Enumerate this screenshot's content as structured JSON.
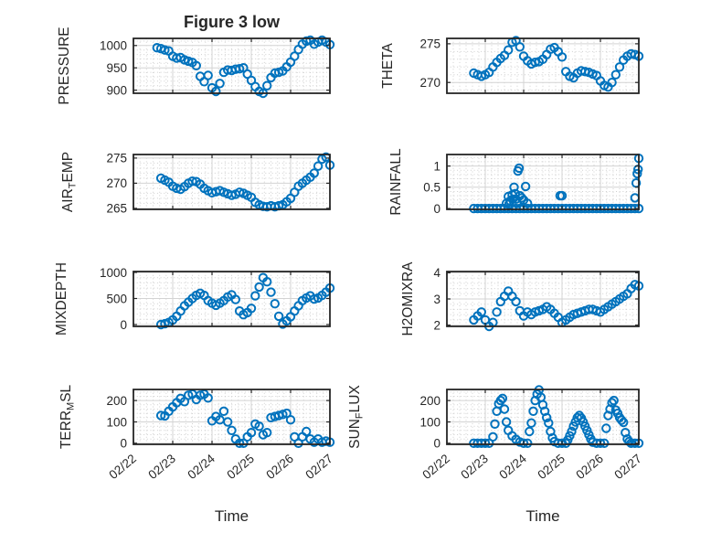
{
  "figure": {
    "title": "Figure 3 low",
    "colors": {
      "marker": "#0072BD",
      "axis": "#262626",
      "text": "#262626",
      "grid": "#d3d3d3",
      "minor_grid": "#cfcfcf",
      "background": "#ffffff"
    },
    "x_axis": {
      "label": "Time",
      "xlim": [
        22,
        27
      ],
      "ticks": [
        22,
        23,
        24,
        25,
        26,
        27
      ],
      "ticklabels": [
        "02/22",
        "02/23",
        "02/24",
        "02/25",
        "02/26",
        "02/27"
      ]
    }
  },
  "chart_data": [
    {
      "name": "PRESSURE",
      "type": "scatter",
      "row": 0,
      "col": 0,
      "title": "Figure 3 low",
      "ylabel": [
        {
          "t": "PRESSURE"
        }
      ],
      "yticks": [
        900,
        950,
        1000
      ],
      "ytick_labels": [
        "900",
        "950",
        "1000"
      ],
      "ylim": [
        893,
        1016
      ],
      "x": [
        22.6,
        22.7,
        22.8,
        22.9,
        23,
        23.1,
        23.2,
        23.3,
        23.4,
        23.5,
        23.6,
        23.7,
        23.8,
        23.9,
        24,
        24.1,
        24.2,
        24.3,
        24.4,
        24.5,
        24.6,
        24.7,
        24.8,
        24.9,
        25,
        25.1,
        25.2,
        25.3,
        25.4,
        25.5,
        25.6,
        25.7,
        25.8,
        25.9,
        26,
        26.1,
        26.2,
        26.3,
        26.4,
        26.5,
        26.6,
        26.7,
        26.8,
        26.9,
        27
      ],
      "y": [
        995,
        993,
        990,
        988,
        976,
        972,
        973,
        968,
        965,
        962,
        955,
        931,
        919,
        933,
        905,
        897,
        915,
        940,
        945,
        944,
        947,
        948,
        950,
        936,
        922,
        908,
        897,
        893,
        910,
        928,
        938,
        940,
        943,
        952,
        963,
        976,
        991,
        1003,
        1010,
        1012,
        1003,
        1008,
        1012,
        1008,
        1002
      ]
    },
    {
      "name": "THETA",
      "type": "scatter",
      "row": 0,
      "col": 1,
      "ylabel": [
        {
          "t": "THETA"
        }
      ],
      "yticks": [
        270,
        275
      ],
      "ytick_labels": [
        "270",
        "275"
      ],
      "ylim": [
        268.6,
        275.7
      ],
      "x": [
        22.7,
        22.8,
        22.9,
        23,
        23.1,
        23.2,
        23.3,
        23.4,
        23.5,
        23.6,
        23.7,
        23.8,
        23.9,
        24,
        24.1,
        24.2,
        24.3,
        24.4,
        24.5,
        24.6,
        24.7,
        24.8,
        24.9,
        25,
        25.1,
        25.2,
        25.3,
        25.4,
        25.5,
        25.6,
        25.7,
        25.8,
        25.9,
        26,
        26.1,
        26.2,
        26.3,
        26.4,
        26.5,
        26.6,
        26.7,
        26.8,
        26.9,
        27
      ],
      "y": [
        271.2,
        271.0,
        270.8,
        271.0,
        271.3,
        272.0,
        272.6,
        273.1,
        273.5,
        274.2,
        275.2,
        275.4,
        274.6,
        273.4,
        272.8,
        272.4,
        272.6,
        272.7,
        273.0,
        273.6,
        274.3,
        274.5,
        274.0,
        273.3,
        271.4,
        270.8,
        270.6,
        271.2,
        271.5,
        271.4,
        271.3,
        271.1,
        270.9,
        270.2,
        269.6,
        269.4,
        270.0,
        271.0,
        272.0,
        272.9,
        273.4,
        273.7,
        273.6,
        273.4
      ]
    },
    {
      "name": "AIR_TEMP",
      "type": "scatter",
      "row": 1,
      "col": 0,
      "ylabel": [
        {
          "t": "AIR"
        },
        {
          "t": "T",
          "sub": true
        },
        {
          "t": "EMP"
        }
      ],
      "yticks": [
        265,
        270,
        275
      ],
      "ytick_labels": [
        "265",
        "270",
        "275"
      ],
      "ylim": [
        264.8,
        275.7
      ],
      "x": [
        22.7,
        22.8,
        22.9,
        23,
        23.1,
        23.2,
        23.3,
        23.4,
        23.5,
        23.6,
        23.7,
        23.8,
        23.9,
        24,
        24.1,
        24.2,
        24.3,
        24.4,
        24.5,
        24.6,
        24.7,
        24.8,
        24.9,
        25,
        25.1,
        25.2,
        25.3,
        25.4,
        25.5,
        25.6,
        25.7,
        25.8,
        25.9,
        26,
        26.1,
        26.2,
        26.3,
        26.4,
        26.5,
        26.6,
        26.7,
        26.8,
        26.9,
        27
      ],
      "y": [
        271.0,
        270.6,
        270.2,
        269.4,
        269.0,
        268.8,
        269.3,
        270.0,
        270.4,
        270.3,
        269.8,
        269.0,
        268.5,
        268.1,
        268.3,
        268.5,
        268.2,
        267.9,
        267.6,
        267.8,
        268.2,
        268.0,
        267.6,
        267.2,
        266.2,
        265.7,
        265.4,
        265.3,
        265.5,
        265.3,
        265.5,
        265.7,
        266.3,
        267.0,
        268.2,
        269.4,
        270.0,
        270.6,
        271.2,
        272.0,
        273.4,
        274.8,
        275.2,
        273.6
      ]
    },
    {
      "name": "RAINFALL",
      "type": "scatter",
      "row": 1,
      "col": 1,
      "ylabel": [
        {
          "t": "RAINFALL"
        }
      ],
      "yticks": [
        0,
        0.5,
        1
      ],
      "ytick_labels": [
        "0",
        "0.5",
        "1"
      ],
      "ylim": [
        -0.02,
        1.27
      ],
      "x": [
        22.7,
        22.8,
        22.9,
        23,
        23.1,
        23.2,
        23.3,
        23.4,
        23.5,
        23.6,
        23.7,
        23.8,
        23.9,
        24,
        24.1,
        24.2,
        24.3,
        24.4,
        24.5,
        24.6,
        24.7,
        24.8,
        24.9,
        25,
        25.1,
        25.2,
        25.3,
        25.4,
        25.5,
        25.6,
        25.7,
        25.8,
        25.9,
        26,
        26.1,
        26.2,
        26.3,
        26.4,
        26.5,
        26.6,
        26.7,
        26.8,
        26.9,
        27,
        23.55,
        23.6,
        23.62,
        23.65,
        23.7,
        23.72,
        23.75,
        23.78,
        23.8,
        23.82,
        23.85,
        23.88,
        23.9,
        23.95,
        24,
        24.05,
        24.1,
        24.95,
        25,
        26.9,
        26.93,
        26.96,
        26.98,
        27
      ],
      "y": [
        0,
        0,
        0,
        0,
        0,
        0,
        0,
        0,
        0,
        0,
        0,
        0,
        0,
        0,
        0,
        0,
        0,
        0,
        0,
        0,
        0,
        0,
        0,
        0,
        0,
        0,
        0,
        0,
        0,
        0,
        0,
        0,
        0,
        0,
        0,
        0,
        0,
        0,
        0,
        0,
        0,
        0,
        0,
        0,
        0.12,
        0.28,
        0.1,
        0.18,
        0.32,
        0.22,
        0.5,
        0.35,
        0.22,
        0.12,
        0.88,
        0.95,
        0.3,
        0.25,
        0.2,
        0.52,
        0.12,
        0.3,
        0.3,
        0.25,
        0.6,
        0.82,
        0.92,
        1.18
      ]
    },
    {
      "name": "MIXDEPTH",
      "type": "scatter",
      "row": 2,
      "col": 0,
      "ylabel": [
        {
          "t": "MIXDEPTH"
        }
      ],
      "yticks": [
        0,
        500,
        1000
      ],
      "ytick_labels": [
        "0",
        "500",
        "1000"
      ],
      "ylim": [
        -35,
        1017
      ],
      "x": [
        22.7,
        22.8,
        22.9,
        23,
        23.1,
        23.2,
        23.3,
        23.4,
        23.5,
        23.6,
        23.7,
        23.8,
        23.9,
        24,
        24.1,
        24.2,
        24.3,
        24.4,
        24.5,
        24.6,
        24.7,
        24.8,
        24.9,
        25,
        25.1,
        25.2,
        25.3,
        25.4,
        25.5,
        25.6,
        25.7,
        25.8,
        25.9,
        26,
        26.1,
        26.2,
        26.3,
        26.4,
        26.5,
        26.6,
        26.7,
        26.8,
        26.9,
        27
      ],
      "y": [
        0,
        15,
        40,
        90,
        160,
        260,
        360,
        430,
        500,
        560,
        600,
        560,
        460,
        410,
        370,
        410,
        460,
        530,
        570,
        480,
        260,
        190,
        230,
        310,
        550,
        720,
        900,
        820,
        620,
        400,
        160,
        10,
        70,
        150,
        260,
        360,
        460,
        510,
        550,
        490,
        510,
        560,
        620,
        700
      ]
    },
    {
      "name": "H2OMIXRA",
      "type": "scatter",
      "row": 2,
      "col": 1,
      "ylabel": [
        {
          "t": "H2OMIXRA"
        }
      ],
      "yticks": [
        2,
        3,
        4
      ],
      "ytick_labels": [
        "2",
        "3",
        "4"
      ],
      "ylim": [
        1.95,
        4.05
      ],
      "x": [
        22.7,
        22.8,
        22.9,
        23,
        23.1,
        23.2,
        23.3,
        23.4,
        23.5,
        23.6,
        23.7,
        23.8,
        23.9,
        24,
        24.1,
        24.2,
        24.3,
        24.4,
        24.5,
        24.6,
        24.7,
        24.8,
        24.9,
        25,
        25.1,
        25.2,
        25.3,
        25.4,
        25.5,
        25.6,
        25.7,
        25.8,
        25.9,
        26,
        26.1,
        26.2,
        26.3,
        26.4,
        26.5,
        26.6,
        26.7,
        26.8,
        26.9,
        27
      ],
      "y": [
        2.2,
        2.35,
        2.5,
        2.2,
        1.95,
        2.1,
        2.5,
        2.9,
        3.1,
        3.3,
        3.1,
        2.9,
        2.55,
        2.35,
        2.5,
        2.4,
        2.5,
        2.55,
        2.6,
        2.7,
        2.6,
        2.45,
        2.3,
        2.1,
        2.2,
        2.3,
        2.4,
        2.45,
        2.5,
        2.55,
        2.6,
        2.6,
        2.55,
        2.5,
        2.6,
        2.7,
        2.8,
        2.9,
        3.0,
        3.1,
        3.2,
        3.4,
        3.55,
        3.5
      ]
    },
    {
      "name": "TERR_MSL",
      "type": "scatter",
      "row": 3,
      "col": 0,
      "ylabel": [
        {
          "t": "TERR"
        },
        {
          "t": "M",
          "sub": true
        },
        {
          "t": "SL"
        }
      ],
      "yticks": [
        0,
        100,
        200
      ],
      "ytick_labels": [
        "0",
        "100",
        "200"
      ],
      "ylim": [
        -5,
        252
      ],
      "x": [
        22.7,
        22.8,
        22.9,
        23,
        23.1,
        23.2,
        23.3,
        23.4,
        23.5,
        23.6,
        23.7,
        23.8,
        23.9,
        24,
        24.1,
        24.2,
        24.3,
        24.4,
        24.5,
        24.6,
        24.7,
        24.8,
        24.9,
        25,
        25.1,
        25.2,
        25.3,
        25.4,
        25.5,
        25.6,
        25.7,
        25.8,
        25.9,
        26,
        26.1,
        26.2,
        26.3,
        26.4,
        26.5,
        26.6,
        26.7,
        26.8,
        26.9,
        27
      ],
      "y": [
        130,
        128,
        150,
        170,
        190,
        210,
        195,
        225,
        230,
        205,
        225,
        230,
        212,
        105,
        125,
        110,
        150,
        100,
        60,
        20,
        0,
        0,
        30,
        50,
        90,
        80,
        40,
        50,
        120,
        125,
        130,
        135,
        140,
        110,
        30,
        0,
        30,
        55,
        20,
        5,
        20,
        5,
        10,
        5
      ]
    },
    {
      "name": "SUN_FLUX",
      "type": "scatter",
      "row": 3,
      "col": 1,
      "ylabel": [
        {
          "t": "SUN"
        },
        {
          "t": "F",
          "sub": true
        },
        {
          "t": "LUX"
        }
      ],
      "yticks": [
        0,
        100,
        200
      ],
      "ytick_labels": [
        "0",
        "100",
        "200"
      ],
      "ylim": [
        -5,
        252
      ],
      "x": [
        22.7,
        22.8,
        22.9,
        23,
        23.1,
        23.2,
        23.25,
        23.3,
        23.35,
        23.4,
        23.45,
        23.5,
        23.55,
        23.6,
        23.7,
        23.8,
        23.9,
        24,
        24.1,
        24.15,
        24.2,
        24.25,
        24.3,
        24.35,
        24.4,
        24.45,
        24.5,
        24.55,
        24.6,
        24.65,
        24.7,
        24.75,
        24.8,
        24.9,
        25,
        25.1,
        25.15,
        25.2,
        25.25,
        25.3,
        25.35,
        25.4,
        25.45,
        25.5,
        25.55,
        25.6,
        25.65,
        25.7,
        25.75,
        25.8,
        25.9,
        26,
        26.1,
        26.15,
        26.2,
        26.25,
        26.3,
        26.35,
        26.4,
        26.45,
        26.5,
        26.55,
        26.6,
        26.65,
        26.7,
        26.75,
        26.8,
        26.9,
        27
      ],
      "y": [
        0,
        0,
        0,
        0,
        0,
        30,
        90,
        150,
        185,
        200,
        210,
        160,
        100,
        60,
        35,
        18,
        6,
        0,
        0,
        55,
        95,
        150,
        200,
        230,
        250,
        215,
        180,
        150,
        120,
        95,
        55,
        25,
        8,
        0,
        0,
        0,
        15,
        35,
        55,
        80,
        100,
        120,
        130,
        118,
        100,
        80,
        60,
        40,
        20,
        5,
        0,
        0,
        0,
        70,
        130,
        160,
        190,
        200,
        155,
        140,
        120,
        108,
        98,
        50,
        20,
        8,
        0,
        0,
        0
      ]
    }
  ]
}
